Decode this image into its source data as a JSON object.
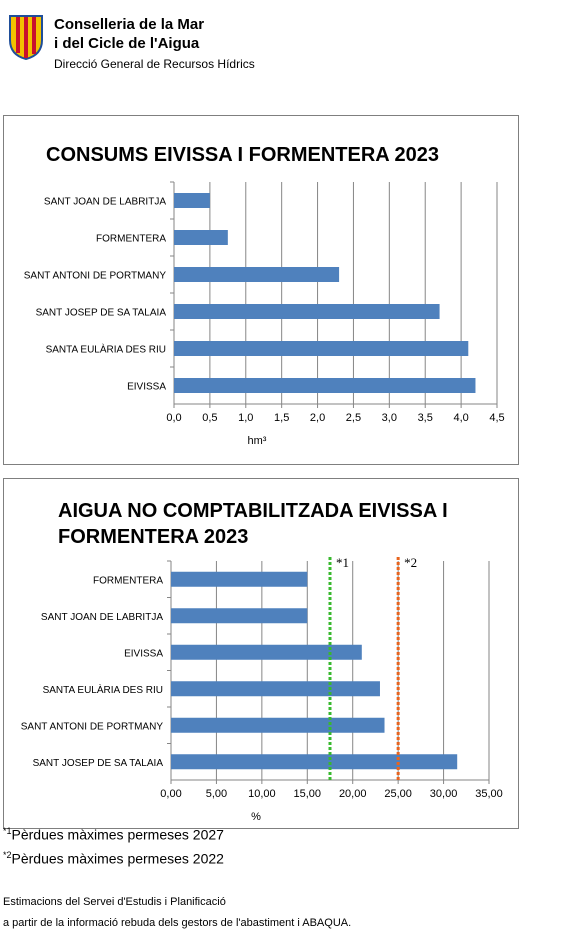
{
  "header": {
    "org_line1": "Conselleria de la Mar",
    "org_line2": "i del Cicle de l'Aigua",
    "org_sub": "Direcció General de Recursos Hídrics",
    "colors": {
      "gold": "#f2c200",
      "red": "#c8102e",
      "blue": "#1f4e9a"
    }
  },
  "chart_data": [
    {
      "type": "bar",
      "orientation": "horizontal",
      "title": "CONSUMS EIVISSA I FORMENTERA 2023",
      "xlabel": "hm³",
      "ylabel": "",
      "categories": [
        "SANT JOAN DE LABRITJA",
        "FORMENTERA",
        "SANT ANTONI DE PORTMANY",
        "SANT JOSEP DE SA TALAIA",
        "SANTA EULÀRIA DES RIU",
        "EIVISSA"
      ],
      "values": [
        0.5,
        0.75,
        2.3,
        3.7,
        4.1,
        4.2
      ],
      "xlim": [
        0,
        4.5
      ],
      "xticks": [
        "0,0",
        "0,5",
        "1,0",
        "1,5",
        "2,0",
        "2,5",
        "3,0",
        "3,5",
        "4,0",
        "4,5"
      ],
      "grid": true,
      "bar_color": "#4f81bd"
    },
    {
      "type": "bar",
      "orientation": "horizontal",
      "title": "AIGUA NO COMPTABILITZADA EIVISSA I FORMENTERA 2023",
      "xlabel": "%",
      "ylabel": "",
      "categories": [
        "FORMENTERA",
        "SANT JOAN DE LABRITJA",
        "EIVISSA",
        "SANTA EULÀRIA DES RIU",
        "SANT ANTONI DE PORTMANY",
        "SANT JOSEP DE SA TALAIA"
      ],
      "values": [
        15,
        15,
        21,
        23,
        23.5,
        31.5
      ],
      "xlim": [
        0,
        35
      ],
      "xticks": [
        "0,00",
        "5,00",
        "10,00",
        "15,00",
        "20,00",
        "25,00",
        "30,00",
        "35,00"
      ],
      "grid": true,
      "bar_color": "#4f81bd",
      "reference_lines": [
        {
          "label": "*1",
          "value": 17.5,
          "color": "#38b82e",
          "style": "dotted"
        },
        {
          "label": "*2",
          "value": 25,
          "color": "#e8641e",
          "style": "dotted"
        }
      ]
    }
  ],
  "notes": {
    "note1_mark": "*1",
    "note1_text": "Pèrdues màximes permeses 2027",
    "note2_mark": "*2",
    "note2_text": "Pèrdues màximes permeses 2022"
  },
  "source": {
    "line1": "Estimacions del Servei d'Estudis i Planificació",
    "line2": "a partir de la informació rebuda dels gestors de l'abastiment i ABAQUA."
  }
}
